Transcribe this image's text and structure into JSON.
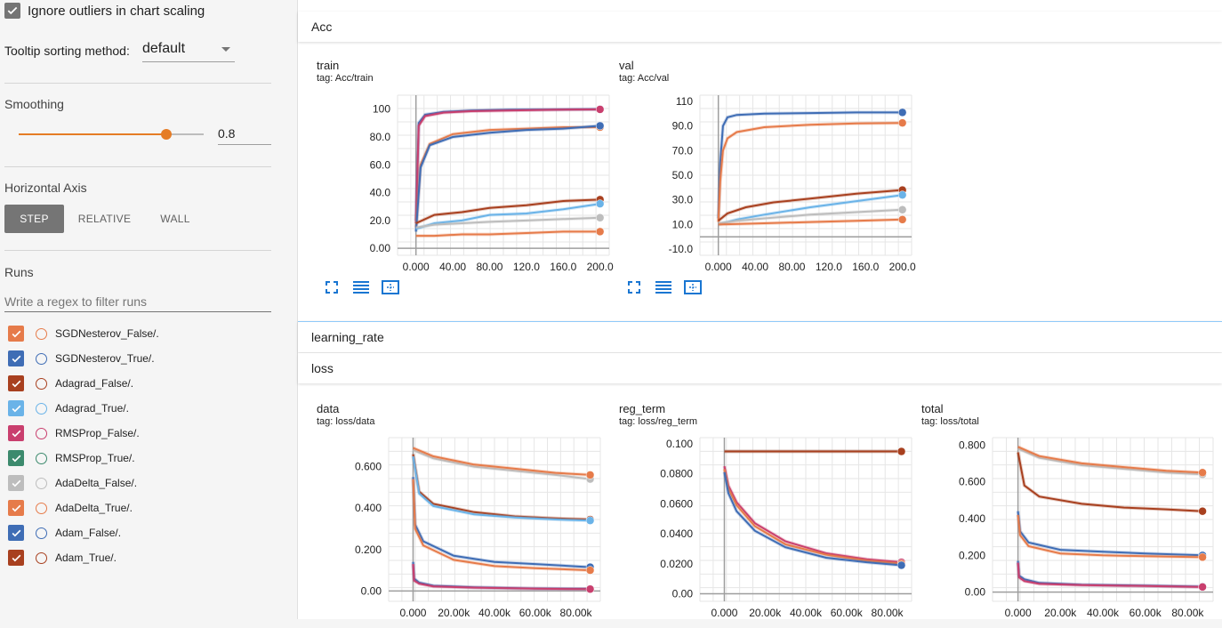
{
  "sidebar": {
    "ignore_outliers": {
      "label": "Ignore outliers in chart scaling",
      "checked": true
    },
    "tooltip_sorting": {
      "label": "Tooltip sorting method:",
      "value": "default"
    },
    "smoothing": {
      "label": "Smoothing",
      "value": "0.8",
      "fraction": 0.8
    },
    "horizontal_axis": {
      "label": "Horizontal Axis",
      "options": [
        "STEP",
        "RELATIVE",
        "WALL"
      ],
      "selected": "STEP"
    },
    "runs": {
      "label": "Runs",
      "filter_placeholder": "Write a regex to filter runs",
      "items": [
        {
          "name": "SGDNesterov_False/.",
          "color": "#e67b4a",
          "checked": true
        },
        {
          "name": "SGDNesterov_True/.",
          "color": "#3f6db5",
          "checked": true
        },
        {
          "name": "Adagrad_False/.",
          "color": "#a8401f",
          "checked": true
        },
        {
          "name": "Adagrad_True/.",
          "color": "#6ab3e8",
          "checked": true
        },
        {
          "name": "RMSProp_False/.",
          "color": "#c93f6e",
          "checked": true
        },
        {
          "name": "RMSProp_True/.",
          "color": "#3c8a6d",
          "checked": true
        },
        {
          "name": "AdaDelta_False/.",
          "color": "#bdbdbd",
          "checked": true
        },
        {
          "name": "AdaDelta_True/.",
          "color": "#e67b4a",
          "checked": true
        },
        {
          "name": "Adam_False/.",
          "color": "#3f6db5",
          "checked": true
        },
        {
          "name": "Adam_True/.",
          "color": "#a8401f",
          "checked": true
        }
      ]
    }
  },
  "groups": {
    "acc": "Acc",
    "learning_rate": "learning_rate",
    "loss": "loss"
  },
  "chart_data": [
    {
      "id": "acc-train",
      "type": "line",
      "title": "train",
      "tag": "tag: Acc/train",
      "xlim": [
        -20,
        210
      ],
      "ylim": [
        -5,
        110
      ],
      "xticks": [
        0,
        40,
        80,
        120,
        160,
        200
      ],
      "xtick_labels": [
        "0.000",
        "40.00",
        "80.00",
        "120.0",
        "160.0",
        "200.0"
      ],
      "yticks": [
        0,
        20,
        40,
        60,
        80,
        100
      ],
      "ytick_labels": [
        "0.00",
        "20.0",
        "40.0",
        "60.0",
        "80.0",
        "100"
      ],
      "series": [
        {
          "color": "#3f6db5",
          "x": [
            0,
            3,
            10,
            30,
            60,
            100,
            150,
            200
          ],
          "y": [
            20,
            90,
            96,
            98,
            99,
            99.5,
            99.7,
            100
          ]
        },
        {
          "color": "#c93f6e",
          "x": [
            0,
            3,
            10,
            30,
            60,
            100,
            150,
            200
          ],
          "y": [
            18,
            88,
            95,
            97.5,
            98.5,
            99,
            99.5,
            99.8
          ]
        },
        {
          "color": "#e67b4a",
          "x": [
            0,
            5,
            15,
            40,
            80,
            120,
            160,
            200
          ],
          "y": [
            15,
            60,
            75,
            82,
            85,
            86,
            87,
            87
          ]
        },
        {
          "color": "#3f6db5",
          "x": [
            0,
            5,
            15,
            40,
            80,
            120,
            160,
            200
          ],
          "y": [
            12,
            58,
            74,
            80,
            83,
            85,
            86,
            88
          ]
        },
        {
          "color": "#a8401f",
          "x": [
            0,
            20,
            50,
            80,
            120,
            160,
            200
          ],
          "y": [
            18,
            24,
            26,
            29,
            31,
            34,
            35
          ]
        },
        {
          "color": "#6ab3e8",
          "x": [
            0,
            20,
            50,
            80,
            120,
            160,
            200
          ],
          "y": [
            14,
            18,
            20,
            24,
            25,
            28,
            32
          ]
        },
        {
          "color": "#bdbdbd",
          "x": [
            0,
            20,
            50,
            80,
            120,
            160,
            200
          ],
          "y": [
            15,
            17,
            18,
            19,
            20,
            21,
            22
          ]
        },
        {
          "color": "#e67b4a",
          "x": [
            0,
            20,
            50,
            80,
            120,
            160,
            200
          ],
          "y": [
            9,
            9,
            10,
            10,
            11,
            12,
            12
          ]
        }
      ]
    },
    {
      "id": "acc-val",
      "type": "line",
      "title": "val",
      "tag": "tag: Acc/val",
      "xlim": [
        -20,
        210
      ],
      "ylim": [
        -15,
        115
      ],
      "xticks": [
        0,
        40,
        80,
        120,
        160,
        200
      ],
      "xtick_labels": [
        "0.000",
        "40.00",
        "80.00",
        "120.0",
        "160.0",
        "200.0"
      ],
      "yticks": [
        -10,
        10,
        30,
        50,
        70,
        90,
        110
      ],
      "ytick_labels": [
        "-10.0",
        "10.0",
        "30.0",
        "50.0",
        "70.0",
        "90.0",
        "110"
      ],
      "series": [
        {
          "color": "#3f6db5",
          "x": [
            0,
            2,
            5,
            10,
            20,
            50,
            100,
            150,
            200
          ],
          "y": [
            15,
            60,
            90,
            97,
            99,
            100,
            100.5,
            101,
            101
          ]
        },
        {
          "color": "#e67b4a",
          "x": [
            0,
            2,
            5,
            10,
            20,
            50,
            100,
            150,
            200
          ],
          "y": [
            12,
            45,
            70,
            80,
            85,
            89,
            91,
            92,
            92.5
          ]
        },
        {
          "color": "#a8401f",
          "x": [
            0,
            10,
            30,
            60,
            100,
            150,
            200
          ],
          "y": [
            13,
            19,
            24,
            28,
            31,
            35,
            38
          ]
        },
        {
          "color": "#6ab3e8",
          "x": [
            0,
            20,
            50,
            100,
            150,
            200
          ],
          "y": [
            10,
            14,
            18,
            24,
            29,
            34
          ]
        },
        {
          "color": "#bdbdbd",
          "x": [
            0,
            20,
            50,
            100,
            150,
            200
          ],
          "y": [
            11,
            13,
            15,
            18,
            20,
            22
          ]
        },
        {
          "color": "#e67b4a",
          "x": [
            0,
            50,
            100,
            150,
            200
          ],
          "y": [
            10,
            11,
            12,
            13,
            14
          ]
        }
      ]
    },
    {
      "id": "loss-data",
      "type": "line",
      "title": "data",
      "tag": "tag: loss/data",
      "xlim": [
        -12000,
        92000
      ],
      "ylim": [
        -0.05,
        0.74
      ],
      "xticks": [
        0,
        20000,
        40000,
        60000,
        80000
      ],
      "xtick_labels": [
        "0.000",
        "20.00k",
        "40.00k",
        "60.00k",
        "80.00k"
      ],
      "yticks": [
        0,
        0.2,
        0.4,
        0.6
      ],
      "ytick_labels": [
        "0.00",
        "0.200",
        "0.400",
        "0.600"
      ],
      "series": [
        {
          "color": "#bdbdbd",
          "x": [
            0,
            10000,
            30000,
            50000,
            70000,
            87000
          ],
          "y": [
            0.68,
            0.64,
            0.6,
            0.58,
            0.56,
            0.54
          ]
        },
        {
          "color": "#e67b4a",
          "x": [
            0,
            10000,
            30000,
            50000,
            70000,
            87000
          ],
          "y": [
            0.69,
            0.65,
            0.61,
            0.59,
            0.57,
            0.56
          ]
        },
        {
          "color": "#a8401f",
          "x": [
            0,
            3000,
            10000,
            30000,
            50000,
            70000,
            87000
          ],
          "y": [
            0.66,
            0.48,
            0.42,
            0.38,
            0.36,
            0.35,
            0.345
          ]
        },
        {
          "color": "#6ab3e8",
          "x": [
            0,
            3000,
            10000,
            30000,
            50000,
            70000,
            87000
          ],
          "y": [
            0.65,
            0.47,
            0.41,
            0.37,
            0.355,
            0.345,
            0.34
          ]
        },
        {
          "color": "#3f6db5",
          "x": [
            0,
            1000,
            5000,
            20000,
            40000,
            60000,
            87000
          ],
          "y": [
            0.55,
            0.32,
            0.24,
            0.17,
            0.14,
            0.13,
            0.115
          ]
        },
        {
          "color": "#e67b4a",
          "x": [
            0,
            1000,
            5000,
            20000,
            40000,
            60000,
            87000
          ],
          "y": [
            0.54,
            0.3,
            0.22,
            0.15,
            0.12,
            0.11,
            0.1
          ]
        },
        {
          "color": "#3f6db5",
          "x": [
            0,
            500,
            3000,
            10000,
            30000,
            60000,
            87000
          ],
          "y": [
            0.14,
            0.06,
            0.04,
            0.025,
            0.018,
            0.012,
            0.01
          ]
        },
        {
          "color": "#c93f6e",
          "x": [
            0,
            500,
            3000,
            10000,
            30000,
            60000,
            87000
          ],
          "y": [
            0.13,
            0.05,
            0.035,
            0.022,
            0.016,
            0.011,
            0.009
          ]
        }
      ]
    },
    {
      "id": "loss-reg-term",
      "type": "line",
      "title": "reg_term",
      "tag": "tag: loss/reg_term",
      "xlim": [
        -12000,
        92000
      ],
      "ylim": [
        -0.005,
        0.104
      ],
      "xticks": [
        0,
        20000,
        40000,
        60000,
        80000
      ],
      "xtick_labels": [
        "0.000",
        "20.00k",
        "40.00k",
        "60.00k",
        "80.00k"
      ],
      "yticks": [
        0,
        0.02,
        0.04,
        0.06,
        0.08,
        0.1
      ],
      "ytick_labels": [
        "0.00",
        "0.0200",
        "0.0400",
        "0.0600",
        "0.0800",
        "0.100"
      ],
      "series": [
        {
          "color": "#bdbdbd",
          "x": [
            0,
            87000
          ],
          "y": [
            0.095,
            0.095
          ]
        },
        {
          "color": "#a8401f",
          "x": [
            0,
            87000
          ],
          "y": [
            0.0948,
            0.0948
          ]
        },
        {
          "color": "#c93f6e",
          "x": [
            0,
            2000,
            6000,
            15000,
            30000,
            50000,
            70000,
            87000
          ],
          "y": [
            0.085,
            0.072,
            0.061,
            0.047,
            0.035,
            0.027,
            0.023,
            0.021
          ]
        },
        {
          "color": "#e67b4a",
          "x": [
            0,
            2000,
            6000,
            15000,
            30000,
            50000,
            70000,
            87000
          ],
          "y": [
            0.083,
            0.07,
            0.059,
            0.045,
            0.033,
            0.026,
            0.022,
            0.02
          ]
        },
        {
          "color": "#3f6db5",
          "x": [
            0,
            2000,
            6000,
            15000,
            30000,
            50000,
            70000,
            87000
          ],
          "y": [
            0.081,
            0.067,
            0.055,
            0.042,
            0.031,
            0.024,
            0.021,
            0.019
          ]
        }
      ]
    },
    {
      "id": "loss-total",
      "type": "line",
      "title": "total",
      "tag": "tag: loss/total",
      "xlim": [
        -12000,
        92000
      ],
      "ylim": [
        -0.05,
        0.84
      ],
      "xticks": [
        0,
        20000,
        40000,
        60000,
        80000
      ],
      "xtick_labels": [
        "0.000",
        "20.00k",
        "40.00k",
        "60.00k",
        "80.00k"
      ],
      "yticks": [
        0,
        0.2,
        0.4,
        0.6,
        0.8
      ],
      "ytick_labels": [
        "0.00",
        "0.200",
        "0.400",
        "0.600",
        "0.800"
      ],
      "series": [
        {
          "color": "#bdbdbd",
          "x": [
            0,
            10000,
            30000,
            50000,
            70000,
            87000
          ],
          "y": [
            0.78,
            0.73,
            0.69,
            0.67,
            0.65,
            0.64
          ]
        },
        {
          "color": "#e67b4a",
          "x": [
            0,
            10000,
            30000,
            50000,
            70000,
            87000
          ],
          "y": [
            0.79,
            0.74,
            0.7,
            0.68,
            0.66,
            0.65
          ]
        },
        {
          "color": "#a8401f",
          "x": [
            0,
            3000,
            10000,
            30000,
            50000,
            70000,
            87000
          ],
          "y": [
            0.76,
            0.58,
            0.52,
            0.48,
            0.46,
            0.45,
            0.44
          ]
        },
        {
          "color": "#3f6db5",
          "x": [
            0,
            1000,
            5000,
            20000,
            40000,
            60000,
            87000
          ],
          "y": [
            0.44,
            0.33,
            0.27,
            0.23,
            0.22,
            0.21,
            0.2
          ]
        },
        {
          "color": "#e67b4a",
          "x": [
            0,
            1000,
            5000,
            20000,
            40000,
            60000,
            87000
          ],
          "y": [
            0.42,
            0.31,
            0.25,
            0.21,
            0.2,
            0.195,
            0.19
          ]
        },
        {
          "color": "#3f6db5",
          "x": [
            0,
            500,
            3000,
            10000,
            30000,
            60000,
            87000
          ],
          "y": [
            0.17,
            0.09,
            0.07,
            0.05,
            0.04,
            0.035,
            0.03
          ]
        },
        {
          "color": "#c93f6e",
          "x": [
            0,
            500,
            3000,
            10000,
            30000,
            60000,
            87000
          ],
          "y": [
            0.16,
            0.08,
            0.06,
            0.045,
            0.038,
            0.033,
            0.028
          ]
        }
      ]
    }
  ]
}
